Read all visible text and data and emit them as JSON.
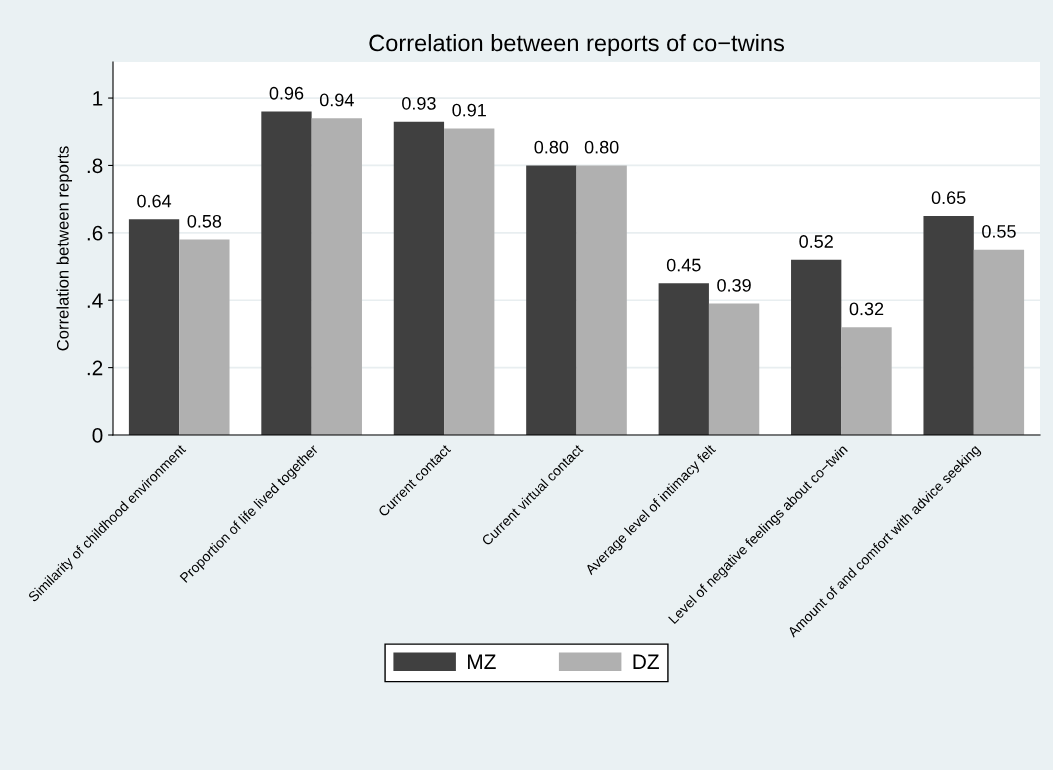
{
  "chart_data": {
    "type": "bar",
    "title": "Correlation between reports of co−twins",
    "ylabel": "Correlation between reports",
    "categories": [
      "Similarity of childhood environment",
      "Proportion of life lived together",
      "Current contact",
      "Current virtual contact",
      "Average level of intimacy felt",
      "Level of negative feelings about co−twin",
      "Amount of and comfort with advice seeking"
    ],
    "series": [
      {
        "name": "MZ",
        "color": "#404040",
        "values": [
          0.64,
          0.96,
          0.93,
          0.8,
          0.45,
          0.52,
          0.65
        ],
        "value_labels": [
          "0.64",
          "0.96",
          "0.93",
          "0.80",
          "0.45",
          "0.52",
          "0.65"
        ]
      },
      {
        "name": "DZ",
        "color": "#b0b0b0",
        "values": [
          0.58,
          0.94,
          0.91,
          0.8,
          0.39,
          0.32,
          0.55
        ],
        "value_labels": [
          "0.58",
          "0.94",
          "0.91",
          "0.80",
          "0.39",
          "0.32",
          "0.55"
        ]
      }
    ],
    "ylim": [
      0,
      1.107
    ],
    "yticks": [
      {
        "value": 0,
        "label": "0"
      },
      {
        "value": 0.2,
        "label": ".2"
      },
      {
        "value": 0.4,
        "label": ".4"
      },
      {
        "value": 0.6,
        "label": ".6"
      },
      {
        "value": 0.8,
        "label": ".8"
      },
      {
        "value": 1,
        "label": "1"
      }
    ],
    "grid": "y",
    "legend": "bottom"
  }
}
